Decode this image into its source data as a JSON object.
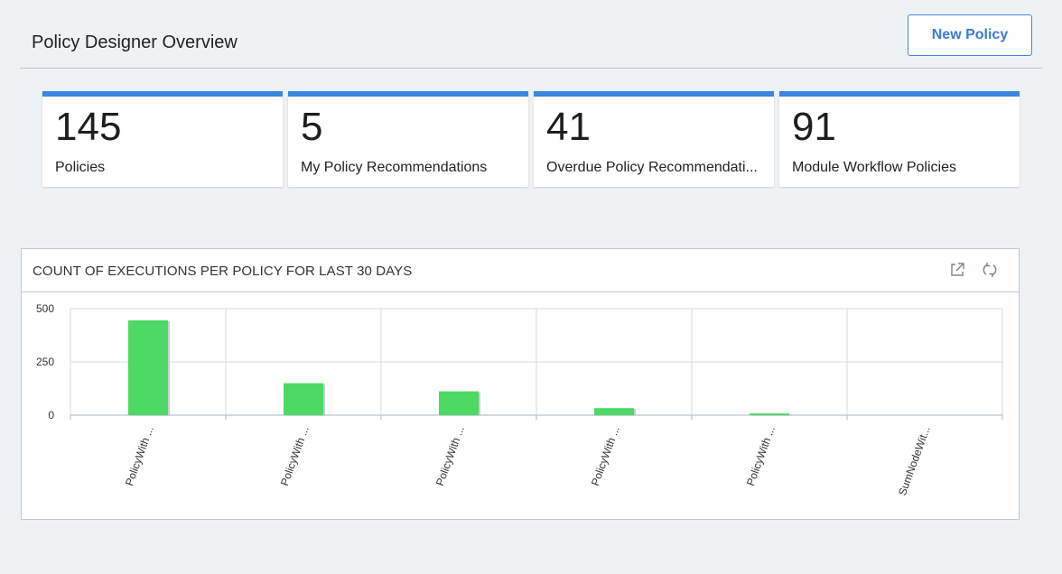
{
  "header": {
    "title": "Policy Designer Overview",
    "new_policy_label": "New Policy"
  },
  "cards": [
    {
      "value": "145",
      "label": "Policies"
    },
    {
      "value": "5",
      "label": "My Policy Recommendations"
    },
    {
      "value": "41",
      "label": "Overdue Policy Recommendati..."
    },
    {
      "value": "91",
      "label": "Module Workflow Policies"
    }
  ],
  "colors": {
    "accent": "#3d86e0",
    "bar": "#4cd964",
    "background": "#eff2f5"
  },
  "chart_panel": {
    "title": "COUNT OF EXECUTIONS PER POLICY FOR LAST 30 DAYS",
    "icons": [
      "open-external-icon",
      "refresh-icon"
    ]
  },
  "chart_data": {
    "type": "bar",
    "title": "COUNT OF EXECUTIONS PER POLICY FOR LAST 30 DAYS",
    "categories": [
      "PolicyWith ...",
      "PolicyWith ...",
      "PolicyWith ...",
      "PolicyWith ...",
      "PolicyWith ...",
      "SumNodeWit..."
    ],
    "values": [
      445,
      150,
      112,
      33,
      8,
      0
    ],
    "ylim": [
      0,
      500
    ],
    "yticks": [
      0,
      250,
      500
    ],
    "grid": true,
    "xlabel": "",
    "ylabel": ""
  }
}
